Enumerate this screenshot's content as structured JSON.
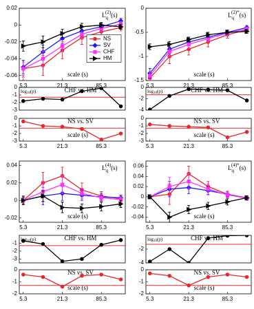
{
  "chart_data": [
    {
      "type": "line",
      "title": {
        "base": "L",
        "sub": "q",
        "sup": "(2)",
        "arg": "(s)"
      },
      "xlabel": "scale (s)",
      "xscale": "log",
      "x": [
        5.3,
        10.7,
        21.3,
        42.7,
        85.3,
        170.7
      ],
      "xlim": [
        4.6,
        200
      ],
      "xticks": [
        5.3,
        21.3,
        85.3
      ],
      "ylim": [
        -0.066,
        0.02
      ],
      "yticks": [
        0.02,
        0,
        -0.02,
        -0.04,
        -0.06
      ],
      "legend": "right",
      "series": [
        {
          "name": "NS",
          "color": "#e8262b",
          "marker": "circle",
          "values": [
            -0.052,
            -0.048,
            -0.03,
            -0.015,
            -0.008,
            -0.003
          ],
          "errors": [
            0.01,
            0.012,
            0.01,
            0.008,
            0.005,
            0.004
          ]
        },
        {
          "name": "SV",
          "color": "#1a1aff",
          "marker": "diamond",
          "values": [
            -0.05,
            -0.032,
            -0.016,
            -0.007,
            -0.002,
            0.005
          ],
          "errors": [
            0.008,
            0.008,
            0.006,
            0.005,
            0.004,
            0.003
          ]
        },
        {
          "name": "CHF",
          "color": "#ff33ff",
          "marker": "square",
          "values": [
            -0.052,
            -0.04,
            -0.025,
            -0.011,
            -0.004,
            0.001
          ],
          "errors": [
            0.008,
            0.009,
            0.007,
            0.005,
            0.004,
            0.003
          ]
        },
        {
          "name": "HM",
          "color": "#000000",
          "marker": "triangle",
          "values": [
            -0.025,
            -0.02,
            -0.01,
            -0.002,
            0.0,
            -0.002
          ],
          "errors": [
            0.006,
            0.007,
            0.005,
            0.004,
            0.003,
            0.003
          ]
        }
      ]
    },
    {
      "type": "line",
      "title": {
        "base": "L",
        "sub": "q",
        "sup": "(2)*",
        "arg": "(s)"
      },
      "xlabel": "scale (s)",
      "xscale": "log",
      "x": [
        5.3,
        10.7,
        21.3,
        42.7,
        85.3,
        170.7
      ],
      "xlim": [
        4.6,
        200
      ],
      "xticks": [
        5.3,
        21.3,
        85.3
      ],
      "ylim": [
        -1.5,
        0
      ],
      "yticks": [
        0,
        -0.5,
        -1,
        -1.5
      ],
      "series": [
        {
          "name": "NS",
          "color": "#e8262b",
          "marker": "circle",
          "values": [
            -1.45,
            -1.0,
            -0.85,
            -0.7,
            -0.55,
            -0.45
          ],
          "errors": [
            0.05,
            0.15,
            0.12,
            0.1,
            0.07,
            0.05
          ]
        },
        {
          "name": "SV",
          "color": "#1a1aff",
          "marker": "diamond",
          "values": [
            -1.35,
            -0.85,
            -0.7,
            -0.6,
            -0.5,
            -0.4
          ],
          "errors": [
            0.1,
            0.1,
            0.08,
            0.06,
            0.05,
            0.04
          ]
        },
        {
          "name": "CHF",
          "color": "#ff33ff",
          "marker": "square",
          "values": [
            -1.4,
            -0.9,
            -0.75,
            -0.63,
            -0.52,
            -0.43
          ],
          "errors": [
            0.08,
            0.1,
            0.08,
            0.06,
            0.05,
            0.04
          ]
        },
        {
          "name": "HM",
          "color": "#000000",
          "marker": "triangle",
          "values": [
            -0.8,
            -0.75,
            -0.65,
            -0.55,
            -0.5,
            -0.48
          ],
          "errors": [
            0.06,
            0.06,
            0.05,
            0.05,
            0.04,
            0.04
          ]
        }
      ]
    },
    {
      "type": "pvalue",
      "annotation": "CHF vs. HM",
      "ylabel": {
        "base": "log",
        "sub": "10",
        "arg": "(p)"
      },
      "xscale": "log",
      "x": [
        5.3,
        10.7,
        21.3,
        42.7,
        85.3,
        170.7
      ],
      "xlim": [
        4.6,
        200
      ],
      "ylim": [
        -3,
        0
      ],
      "yticks": [
        0,
        -1,
        -2,
        -3
      ],
      "threshold": -1.3,
      "threshold_color": "#e8262b",
      "series": [
        {
          "color": "#000000",
          "values": [
            -1.8,
            -1.5,
            -1.6,
            -0.5,
            -0.1,
            -2.5
          ]
        }
      ]
    },
    {
      "type": "pvalue",
      "annotation": "CHF vs. HM",
      "ylabel": {
        "base": "log",
        "sub": "10",
        "arg": "(p)"
      },
      "xscale": "log",
      "x": [
        5.3,
        10.7,
        21.3,
        42.7,
        85.3,
        170.7
      ],
      "xlim": [
        4.6,
        200
      ],
      "ylim": [
        -4,
        0
      ],
      "yticks": [
        0,
        -2,
        -4
      ],
      "threshold": -1.3,
      "threshold_color": "#e8262b",
      "series": [
        {
          "color": "#000000",
          "values": [
            -3.9,
            -1.5,
            -0.3,
            -0.4,
            -0.5,
            -2.3
          ]
        }
      ]
    },
    {
      "type": "pvalue",
      "annotation": "NS vs. SV",
      "xlabel": "scale (s)",
      "xscale": "log",
      "x": [
        5.3,
        10.7,
        21.3,
        42.7,
        85.3,
        170.7
      ],
      "xlim": [
        4.6,
        200
      ],
      "xticks": [
        5.3,
        21.3,
        85.3
      ],
      "ylim": [
        -3,
        0
      ],
      "yticks": [
        0,
        -1,
        -2,
        -3
      ],
      "threshold": -1.3,
      "threshold_color": "#e8262b",
      "series": [
        {
          "color": "#e8262b",
          "values": [
            -0.4,
            -1.0,
            -1.1,
            -1.4,
            -2.8,
            -2.0
          ]
        }
      ]
    },
    {
      "type": "pvalue",
      "annotation": "NS vs. SV",
      "xlabel": "scale (s)",
      "xscale": "log",
      "x": [
        5.3,
        10.7,
        21.3,
        42.7,
        85.3,
        170.7
      ],
      "xlim": [
        4.6,
        200
      ],
      "xticks": [
        5.3,
        21.3,
        85.3
      ],
      "ylim": [
        -3,
        0
      ],
      "yticks": [
        0,
        -1,
        -2,
        -3
      ],
      "threshold": -1.3,
      "threshold_color": "#e8262b",
      "series": [
        {
          "color": "#e8262b",
          "values": [
            -0.8,
            -1.0,
            -1.1,
            -1.2,
            -2.5,
            -1.8
          ]
        }
      ]
    },
    {
      "type": "line",
      "title": {
        "base": "L",
        "sub": "q",
        "sup": "(4)",
        "arg": "(s)"
      },
      "xlabel": "scale (s)",
      "xscale": "log",
      "x": [
        5.3,
        10.7,
        21.3,
        42.7,
        85.3,
        170.7
      ],
      "xlim": [
        4.6,
        200
      ],
      "xticks": [
        5.3,
        21.3,
        85.3
      ],
      "ylim": [
        -0.025,
        0.045
      ],
      "yticks": [
        0.04,
        0.02,
        0,
        -0.02
      ],
      "series": [
        {
          "name": "NS",
          "color": "#e8262b",
          "marker": "circle",
          "values": [
            0.0,
            0.02,
            0.028,
            0.012,
            0.005,
            0.002
          ],
          "errors": [
            0.004,
            0.012,
            0.01,
            0.008,
            0.005,
            0.004
          ]
        },
        {
          "name": "SV",
          "color": "#1a1aff",
          "marker": "diamond",
          "values": [
            0.0,
            0.005,
            0.008,
            0.006,
            0.004,
            0.003
          ],
          "errors": [
            0.003,
            0.01,
            0.008,
            0.006,
            0.004,
            0.003
          ]
        },
        {
          "name": "CHF",
          "color": "#ff33ff",
          "marker": "square",
          "values": [
            0.0,
            0.01,
            0.018,
            0.008,
            0.003,
            0.001
          ],
          "errors": [
            0.003,
            0.012,
            0.01,
            0.006,
            0.004,
            0.003
          ]
        },
        {
          "name": "HM",
          "color": "#000000",
          "marker": "triangle",
          "values": [
            0.0,
            0.005,
            -0.008,
            -0.009,
            -0.007,
            -0.004
          ],
          "errors": [
            0.005,
            0.006,
            0.006,
            0.005,
            0.005,
            0.004
          ]
        }
      ]
    },
    {
      "type": "line",
      "title": {
        "base": "L",
        "sub": "q",
        "sup": "(4)*",
        "arg": "(s)"
      },
      "xlabel": "scale (s)",
      "xscale": "log",
      "x": [
        5.3,
        10.7,
        21.3,
        42.7,
        85.3,
        170.7
      ],
      "xlim": [
        4.6,
        200
      ],
      "xticks": [
        5.3,
        21.3,
        85.3
      ],
      "ylim": [
        -0.05,
        0.07
      ],
      "yticks": [
        0.06,
        0.04,
        0.02,
        0,
        -0.02,
        -0.04
      ],
      "series": [
        {
          "name": "NS",
          "color": "#e8262b",
          "marker": "circle",
          "values": [
            0.0,
            0.005,
            0.045,
            0.02,
            0.005,
            -0.002
          ],
          "errors": [
            0.004,
            0.02,
            0.015,
            0.01,
            0.006,
            0.004
          ]
        },
        {
          "name": "SV",
          "color": "#1a1aff",
          "marker": "diamond",
          "values": [
            0.0,
            0.015,
            0.018,
            0.012,
            0.005,
            -0.003
          ],
          "errors": [
            0.004,
            0.015,
            0.012,
            0.008,
            0.005,
            0.004
          ]
        },
        {
          "name": "CHF",
          "color": "#ff33ff",
          "marker": "square",
          "values": [
            0.0,
            0.02,
            0.03,
            0.015,
            0.004,
            -0.003
          ],
          "errors": [
            0.004,
            0.018,
            0.015,
            0.01,
            0.006,
            0.004
          ]
        },
        {
          "name": "HM",
          "color": "#000000",
          "marker": "triangle",
          "values": [
            0.0,
            -0.04,
            -0.025,
            -0.018,
            -0.01,
            -0.002
          ],
          "errors": [
            0.004,
            0.01,
            0.008,
            0.007,
            0.006,
            0.004
          ]
        }
      ]
    },
    {
      "type": "pvalue",
      "annotation": "CHF vs. HM",
      "ylabel": {
        "base": "log",
        "sub": "10",
        "arg": "(p)"
      },
      "xscale": "log",
      "x": [
        5.3,
        10.7,
        21.3,
        42.7,
        85.3,
        170.7
      ],
      "xlim": [
        4.6,
        200
      ],
      "ylim": [
        -3.5,
        0
      ],
      "yticks": [
        -1,
        -2,
        -3
      ],
      "threshold": -1.3,
      "threshold_color": "#e8262b",
      "series": [
        {
          "color": "#000000",
          "values": [
            -0.7,
            -1.1,
            -3.3,
            -3.0,
            -1.2,
            -0.6
          ]
        }
      ]
    },
    {
      "type": "pvalue",
      "annotation": "CHF vs. HM",
      "ylabel": {
        "base": "log",
        "sub": "10",
        "arg": "(p)"
      },
      "xscale": "log",
      "x": [
        5.3,
        10.7,
        21.3,
        42.7,
        85.3,
        170.7
      ],
      "xlim": [
        4.6,
        200
      ],
      "ylim": [
        -4,
        0
      ],
      "yticks": [
        -2,
        -4
      ],
      "threshold": -1.3,
      "threshold_color": "#e8262b",
      "series": [
        {
          "color": "#000000",
          "values": [
            -3.8,
            -2.0,
            -4.0,
            -0.4,
            -0.05,
            0.0
          ]
        }
      ]
    },
    {
      "type": "pvalue",
      "annotation": "NS vs. SV",
      "xlabel": "scale (s)",
      "xscale": "log",
      "x": [
        5.3,
        10.7,
        21.3,
        42.7,
        85.3,
        170.7
      ],
      "xlim": [
        4.6,
        200
      ],
      "xticks": [
        5.3,
        21.3,
        85.3
      ],
      "ylim": [
        -2,
        0
      ],
      "yticks": [
        0,
        -1,
        -2
      ],
      "threshold": -1.3,
      "threshold_color": "#e8262b",
      "series": [
        {
          "color": "#e8262b",
          "values": [
            -0.4,
            -0.6,
            -1.4,
            -0.5,
            -0.4,
            -0.8
          ]
        }
      ]
    },
    {
      "type": "pvalue",
      "annotation": "NS vs. SV",
      "xlabel": "scale (s)",
      "xscale": "log",
      "x": [
        5.3,
        10.7,
        21.3,
        42.7,
        85.3,
        170.7
      ],
      "xlim": [
        4.6,
        200
      ],
      "xticks": [
        5.3,
        21.3,
        85.3
      ],
      "ylim": [
        -2,
        0
      ],
      "yticks": [
        0,
        -1,
        -2
      ],
      "threshold": -1.3,
      "threshold_color": "#e8262b",
      "series": [
        {
          "color": "#e8262b",
          "values": [
            -0.3,
            -0.5,
            -1.3,
            -0.6,
            -0.4,
            -0.6
          ]
        }
      ]
    }
  ]
}
